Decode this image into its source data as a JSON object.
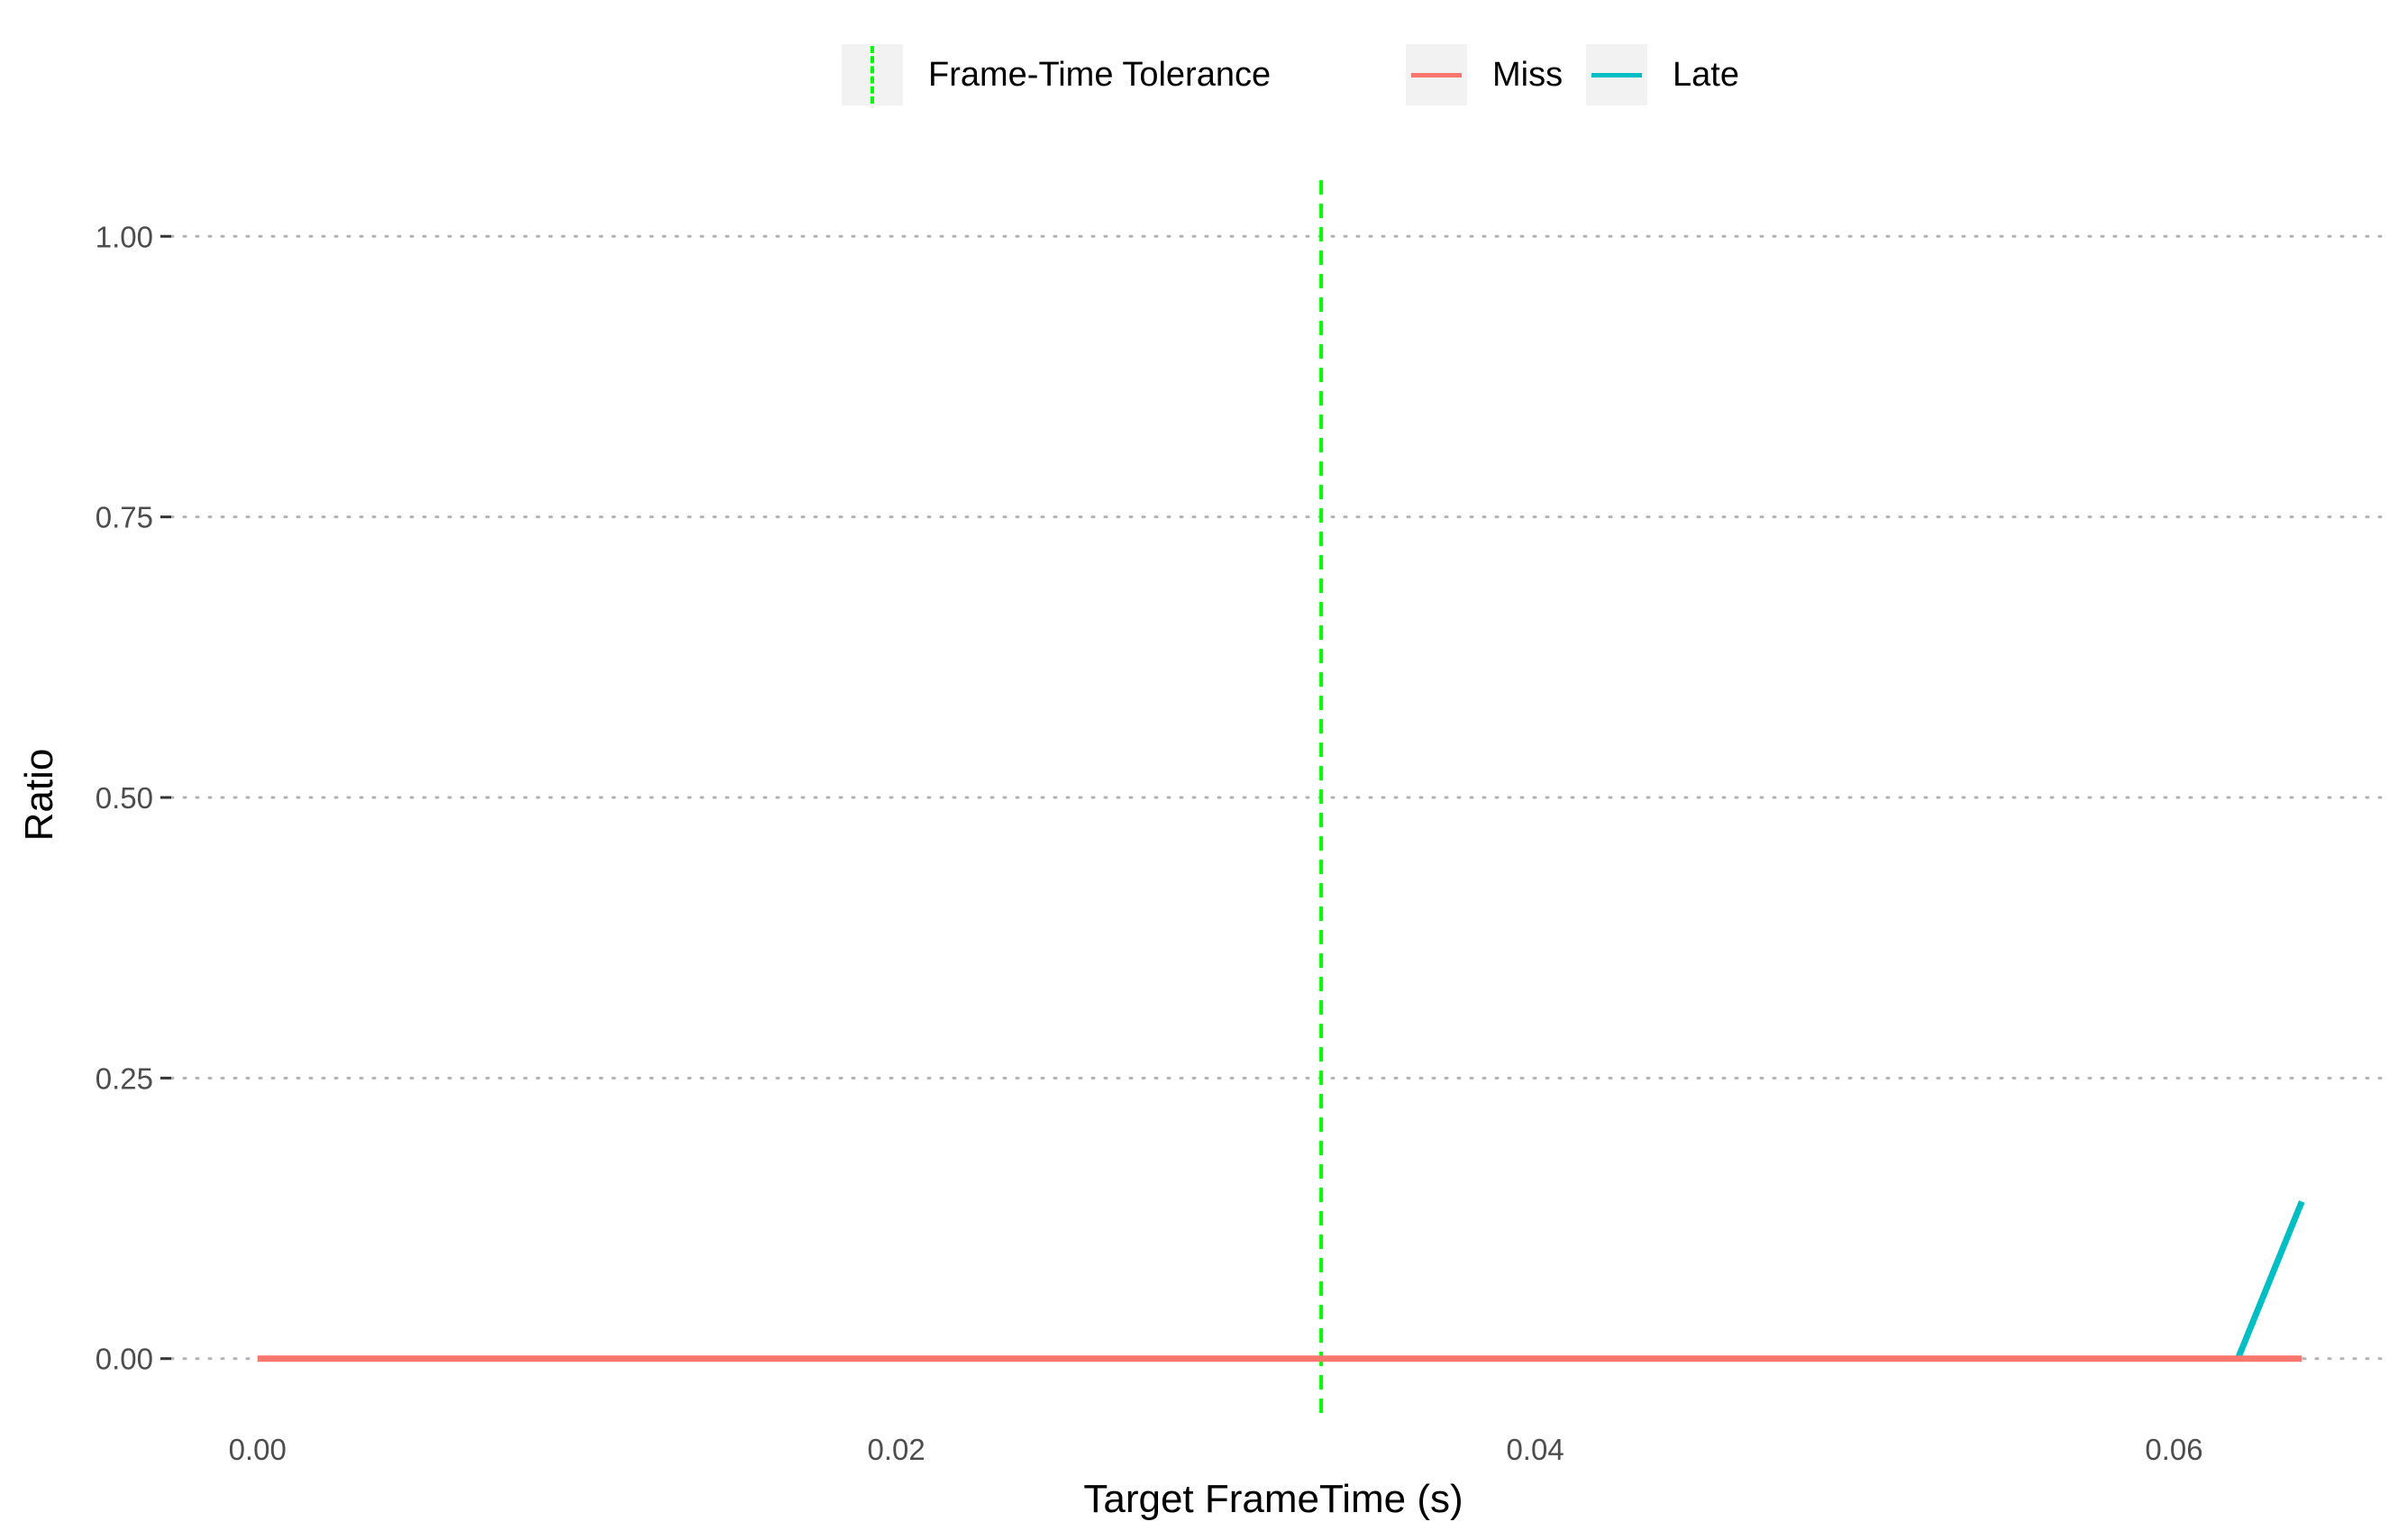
{
  "chart_data": {
    "type": "line",
    "xlabel": "Target FrameTime (s)",
    "ylabel": "Ratio",
    "xlim": [
      -0.0027,
      0.0667
    ],
    "ylim": [
      -0.05,
      1.05
    ],
    "x_ticks": [
      0.0,
      0.02,
      0.04,
      0.06
    ],
    "x_tick_labels": [
      "0.00",
      "0.02",
      "0.04",
      "0.06"
    ],
    "y_ticks": [
      0.0,
      0.25,
      0.5,
      0.75,
      1.0
    ],
    "y_tick_labels": [
      "0.00",
      "0.25",
      "0.50",
      "0.75",
      "1.00"
    ],
    "grid": "horizontal-dotted",
    "legend_position": "top",
    "series": [
      {
        "name": "Miss",
        "color": "#F8766D",
        "x": [
          0.0,
          0.064
        ],
        "y": [
          0.0,
          0.0
        ]
      },
      {
        "name": "Late",
        "color": "#00BFC4",
        "x": [
          0.062,
          0.064
        ],
        "y": [
          0.0,
          0.14
        ]
      }
    ],
    "reference_lines": [
      {
        "name": "Frame-Time Tolerance",
        "type": "vertical",
        "x": 0.0333,
        "color": "#00FF00",
        "style": "dashed"
      }
    ]
  }
}
